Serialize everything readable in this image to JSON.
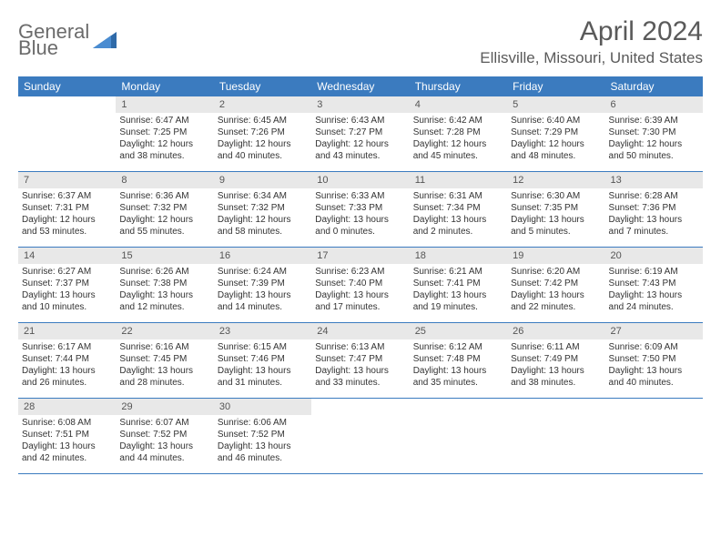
{
  "logo": {
    "line1": "General",
    "line2": "Blue"
  },
  "header": {
    "month_title": "April 2024",
    "location": "Ellisville, Missouri, United States"
  },
  "colors": {
    "brand_blue": "#3b7bbf",
    "text_gray": "#5a5a5a",
    "grid_gray": "#e8e8e8"
  },
  "day_names": [
    "Sunday",
    "Monday",
    "Tuesday",
    "Wednesday",
    "Thursday",
    "Friday",
    "Saturday"
  ],
  "weeks": [
    [
      {
        "empty": true
      },
      {
        "num": "1",
        "sunrise": "Sunrise: 6:47 AM",
        "sunset": "Sunset: 7:25 PM",
        "daylight1": "Daylight: 12 hours",
        "daylight2": "and 38 minutes."
      },
      {
        "num": "2",
        "sunrise": "Sunrise: 6:45 AM",
        "sunset": "Sunset: 7:26 PM",
        "daylight1": "Daylight: 12 hours",
        "daylight2": "and 40 minutes."
      },
      {
        "num": "3",
        "sunrise": "Sunrise: 6:43 AM",
        "sunset": "Sunset: 7:27 PM",
        "daylight1": "Daylight: 12 hours",
        "daylight2": "and 43 minutes."
      },
      {
        "num": "4",
        "sunrise": "Sunrise: 6:42 AM",
        "sunset": "Sunset: 7:28 PM",
        "daylight1": "Daylight: 12 hours",
        "daylight2": "and 45 minutes."
      },
      {
        "num": "5",
        "sunrise": "Sunrise: 6:40 AM",
        "sunset": "Sunset: 7:29 PM",
        "daylight1": "Daylight: 12 hours",
        "daylight2": "and 48 minutes."
      },
      {
        "num": "6",
        "sunrise": "Sunrise: 6:39 AM",
        "sunset": "Sunset: 7:30 PM",
        "daylight1": "Daylight: 12 hours",
        "daylight2": "and 50 minutes."
      }
    ],
    [
      {
        "num": "7",
        "sunrise": "Sunrise: 6:37 AM",
        "sunset": "Sunset: 7:31 PM",
        "daylight1": "Daylight: 12 hours",
        "daylight2": "and 53 minutes."
      },
      {
        "num": "8",
        "sunrise": "Sunrise: 6:36 AM",
        "sunset": "Sunset: 7:32 PM",
        "daylight1": "Daylight: 12 hours",
        "daylight2": "and 55 minutes."
      },
      {
        "num": "9",
        "sunrise": "Sunrise: 6:34 AM",
        "sunset": "Sunset: 7:32 PM",
        "daylight1": "Daylight: 12 hours",
        "daylight2": "and 58 minutes."
      },
      {
        "num": "10",
        "sunrise": "Sunrise: 6:33 AM",
        "sunset": "Sunset: 7:33 PM",
        "daylight1": "Daylight: 13 hours",
        "daylight2": "and 0 minutes."
      },
      {
        "num": "11",
        "sunrise": "Sunrise: 6:31 AM",
        "sunset": "Sunset: 7:34 PM",
        "daylight1": "Daylight: 13 hours",
        "daylight2": "and 2 minutes."
      },
      {
        "num": "12",
        "sunrise": "Sunrise: 6:30 AM",
        "sunset": "Sunset: 7:35 PM",
        "daylight1": "Daylight: 13 hours",
        "daylight2": "and 5 minutes."
      },
      {
        "num": "13",
        "sunrise": "Sunrise: 6:28 AM",
        "sunset": "Sunset: 7:36 PM",
        "daylight1": "Daylight: 13 hours",
        "daylight2": "and 7 minutes."
      }
    ],
    [
      {
        "num": "14",
        "sunrise": "Sunrise: 6:27 AM",
        "sunset": "Sunset: 7:37 PM",
        "daylight1": "Daylight: 13 hours",
        "daylight2": "and 10 minutes."
      },
      {
        "num": "15",
        "sunrise": "Sunrise: 6:26 AM",
        "sunset": "Sunset: 7:38 PM",
        "daylight1": "Daylight: 13 hours",
        "daylight2": "and 12 minutes."
      },
      {
        "num": "16",
        "sunrise": "Sunrise: 6:24 AM",
        "sunset": "Sunset: 7:39 PM",
        "daylight1": "Daylight: 13 hours",
        "daylight2": "and 14 minutes."
      },
      {
        "num": "17",
        "sunrise": "Sunrise: 6:23 AM",
        "sunset": "Sunset: 7:40 PM",
        "daylight1": "Daylight: 13 hours",
        "daylight2": "and 17 minutes."
      },
      {
        "num": "18",
        "sunrise": "Sunrise: 6:21 AM",
        "sunset": "Sunset: 7:41 PM",
        "daylight1": "Daylight: 13 hours",
        "daylight2": "and 19 minutes."
      },
      {
        "num": "19",
        "sunrise": "Sunrise: 6:20 AM",
        "sunset": "Sunset: 7:42 PM",
        "daylight1": "Daylight: 13 hours",
        "daylight2": "and 22 minutes."
      },
      {
        "num": "20",
        "sunrise": "Sunrise: 6:19 AM",
        "sunset": "Sunset: 7:43 PM",
        "daylight1": "Daylight: 13 hours",
        "daylight2": "and 24 minutes."
      }
    ],
    [
      {
        "num": "21",
        "sunrise": "Sunrise: 6:17 AM",
        "sunset": "Sunset: 7:44 PM",
        "daylight1": "Daylight: 13 hours",
        "daylight2": "and 26 minutes."
      },
      {
        "num": "22",
        "sunrise": "Sunrise: 6:16 AM",
        "sunset": "Sunset: 7:45 PM",
        "daylight1": "Daylight: 13 hours",
        "daylight2": "and 28 minutes."
      },
      {
        "num": "23",
        "sunrise": "Sunrise: 6:15 AM",
        "sunset": "Sunset: 7:46 PM",
        "daylight1": "Daylight: 13 hours",
        "daylight2": "and 31 minutes."
      },
      {
        "num": "24",
        "sunrise": "Sunrise: 6:13 AM",
        "sunset": "Sunset: 7:47 PM",
        "daylight1": "Daylight: 13 hours",
        "daylight2": "and 33 minutes."
      },
      {
        "num": "25",
        "sunrise": "Sunrise: 6:12 AM",
        "sunset": "Sunset: 7:48 PM",
        "daylight1": "Daylight: 13 hours",
        "daylight2": "and 35 minutes."
      },
      {
        "num": "26",
        "sunrise": "Sunrise: 6:11 AM",
        "sunset": "Sunset: 7:49 PM",
        "daylight1": "Daylight: 13 hours",
        "daylight2": "and 38 minutes."
      },
      {
        "num": "27",
        "sunrise": "Sunrise: 6:09 AM",
        "sunset": "Sunset: 7:50 PM",
        "daylight1": "Daylight: 13 hours",
        "daylight2": "and 40 minutes."
      }
    ],
    [
      {
        "num": "28",
        "sunrise": "Sunrise: 6:08 AM",
        "sunset": "Sunset: 7:51 PM",
        "daylight1": "Daylight: 13 hours",
        "daylight2": "and 42 minutes."
      },
      {
        "num": "29",
        "sunrise": "Sunrise: 6:07 AM",
        "sunset": "Sunset: 7:52 PM",
        "daylight1": "Daylight: 13 hours",
        "daylight2": "and 44 minutes."
      },
      {
        "num": "30",
        "sunrise": "Sunrise: 6:06 AM",
        "sunset": "Sunset: 7:52 PM",
        "daylight1": "Daylight: 13 hours",
        "daylight2": "and 46 minutes."
      },
      {
        "empty": true
      },
      {
        "empty": true
      },
      {
        "empty": true
      },
      {
        "empty": true
      }
    ]
  ]
}
